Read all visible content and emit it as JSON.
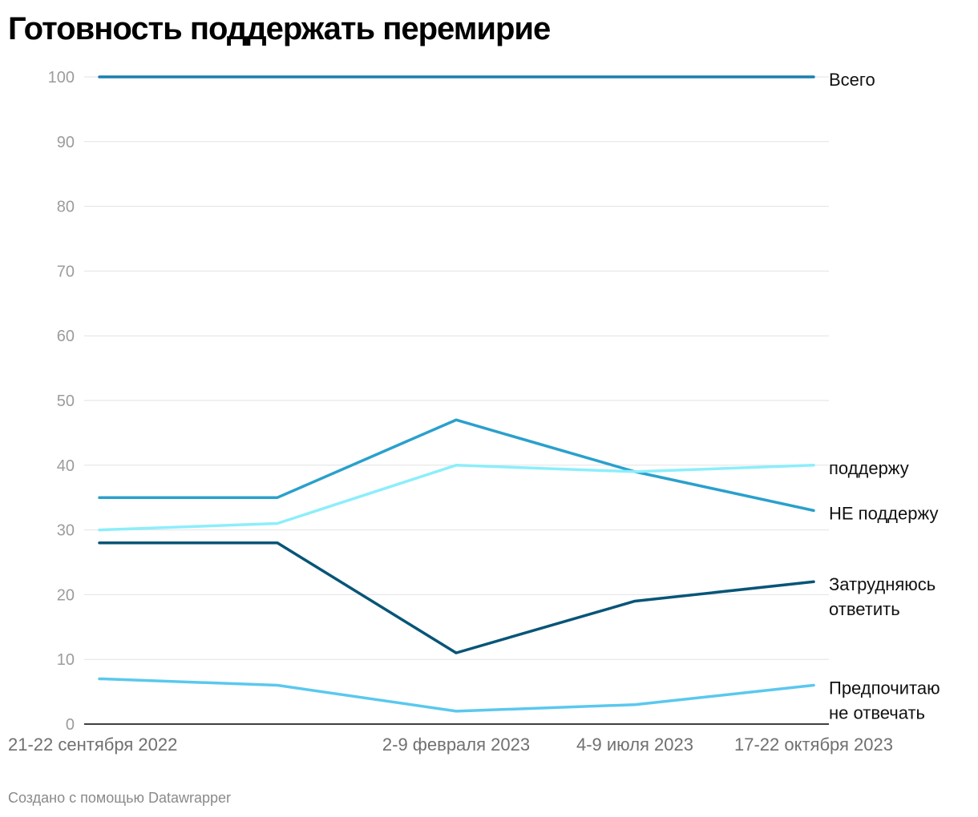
{
  "title": "Готовность поддержать перемирие",
  "footer": "Создано с помощью Datawrapper",
  "chart_data": {
    "type": "line",
    "title": "Готовность поддержать перемирие",
    "x": [
      "21-22 сентября 2022",
      "",
      "2-9 февраля 2023",
      "4-9 июля 2023",
      "17-22 октября 2023"
    ],
    "x_tick_labels": [
      "21-22 сентября 2022",
      "2-9 февраля 2023",
      "4-9 июля 2023",
      "17-22 октября 2023"
    ],
    "ylim": [
      0,
      100
    ],
    "y_ticks": [
      0,
      10,
      20,
      30,
      40,
      50,
      60,
      70,
      80,
      90,
      100
    ],
    "grid": true,
    "series": [
      {
        "name": "Всего",
        "label_lines": [
          "Всего"
        ],
        "values": [
          100,
          100,
          100,
          100,
          100
        ],
        "color": "#1a7fb0"
      },
      {
        "name": "поддержу",
        "label_lines": [
          "поддержу"
        ],
        "values": [
          30,
          31,
          40,
          39,
          40
        ],
        "color": "#8ceefb"
      },
      {
        "name": "НЕ поддержу",
        "label_lines": [
          "НЕ поддержу"
        ],
        "values": [
          35,
          35,
          47,
          39,
          33
        ],
        "color": "#2aa0cc"
      },
      {
        "name": "Затрудняюсь ответить",
        "label_lines": [
          "Затрудняюсь",
          "ответить"
        ],
        "values": [
          28,
          28,
          11,
          19,
          22
        ],
        "color": "#075577"
      },
      {
        "name": "Предпочитаю не отвечать",
        "label_lines": [
          "Предпочитаю",
          "не отвечать"
        ],
        "values": [
          7,
          6,
          2,
          3,
          6
        ],
        "color": "#5ac8ee"
      }
    ]
  }
}
